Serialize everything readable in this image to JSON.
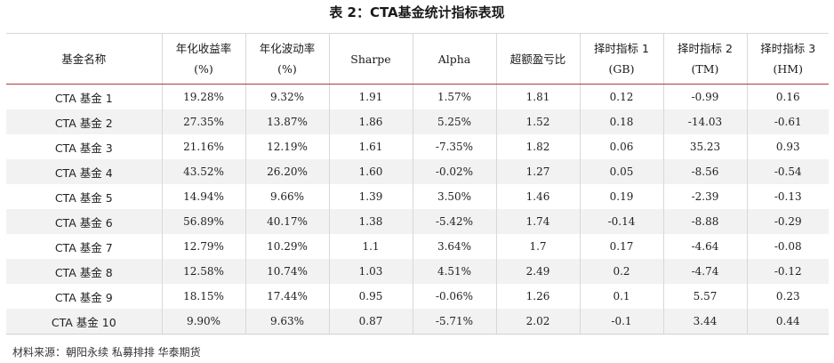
{
  "title": "表 2：CTA基金统计指标表现",
  "headers": [
    {
      "line1": "基金名称",
      "line2": ""
    },
    {
      "line1": "年化收益率",
      "line2": "(%)"
    },
    {
      "line1": "年化波动率",
      "line2": "(%)"
    },
    {
      "line1": "Sharpe",
      "line2": ""
    },
    {
      "line1": "Alpha",
      "line2": ""
    },
    {
      "line1": "超额盈亏比",
      "line2": ""
    },
    {
      "line1": "择时指标 1",
      "line2": "(GB)"
    },
    {
      "line1": "择时指标 2",
      "line2": "(TM)"
    },
    {
      "line1": "择时指标 3",
      "line2": "(HM)"
    }
  ],
  "rows": [
    [
      "CTA 基金 1",
      "19.28%",
      "9.32%",
      "1.91",
      "1.57%",
      "1.81",
      "0.12",
      "-0.99",
      "0.16"
    ],
    [
      "CTA 基金 2",
      "27.35%",
      "13.87%",
      "1.86",
      "5.25%",
      "1.52",
      "0.18",
      "-14.03",
      "-0.61"
    ],
    [
      "CTA 基金 3",
      "21.16%",
      "12.19%",
      "1.61",
      "-7.35%",
      "1.82",
      "0.06",
      "35.23",
      "0.93"
    ],
    [
      "CTA 基金 4",
      "43.52%",
      "26.20%",
      "1.60",
      "-0.02%",
      "1.27",
      "0.05",
      "-8.56",
      "-0.54"
    ],
    [
      "CTA 基金 5",
      "14.94%",
      "9.66%",
      "1.39",
      "3.50%",
      "1.46",
      "0.19",
      "-2.39",
      "-0.13"
    ],
    [
      "CTA 基金 6",
      "56.89%",
      "40.17%",
      "1.38",
      "-5.42%",
      "1.74",
      "-0.14",
      "-8.88",
      "-0.29"
    ],
    [
      "CTA 基金 7",
      "12.79%",
      "10.29%",
      "1.1",
      "3.64%",
      "1.7",
      "0.17",
      "-4.64",
      "-0.08"
    ],
    [
      "CTA 基金 8",
      "12.58%",
      "10.74%",
      "1.03",
      "4.51%",
      "2.49",
      "0.2",
      "-4.74",
      "-0.12"
    ],
    [
      "CTA 基金 9",
      "18.15%",
      "17.44%",
      "0.95",
      "-0.06%",
      "1.26",
      "0.1",
      "5.57",
      "0.23"
    ],
    [
      "CTA 基金 10",
      "9.90%",
      "9.63%",
      "0.87",
      "-5.71%",
      "2.02",
      "-0.1",
      "3.44",
      "0.44"
    ]
  ],
  "source": "材料来源：朝阳永续 私募排排 华泰期货",
  "colors": {
    "header_rule": "#b23a3a",
    "stripe": "#f2f2f2",
    "grid": "#d8d8d8"
  }
}
